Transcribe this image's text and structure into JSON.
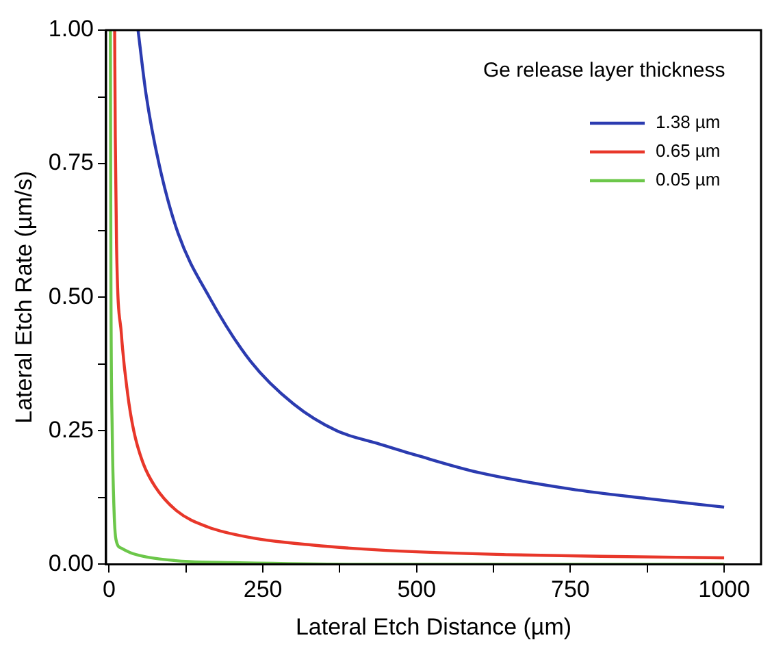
{
  "chart_data": {
    "type": "line",
    "xlabel": "Lateral Etch Distance (µm)",
    "ylabel": "Lateral Etch Rate (µm/s)",
    "legend_title": "Ge release layer thickness",
    "legend": "top right",
    "grid": false,
    "marker": "none",
    "line_style": "solid",
    "xlim": [
      -5,
      1060
    ],
    "ylim": [
      0,
      1
    ],
    "xticks": [
      0,
      {
        "value": 125,
        "label": null
      },
      250,
      {
        "value": 375,
        "label": null
      },
      500,
      {
        "value": 625,
        "label": null
      },
      750,
      {
        "value": 875,
        "label": null
      },
      1000
    ],
    "yticks": [
      {
        "value": 0,
        "label": "0.00"
      },
      {
        "value": 0.125,
        "label": null
      },
      {
        "value": 0.25,
        "label": "0.25"
      },
      {
        "value": 0.375,
        "label": null
      },
      {
        "value": 0.5,
        "label": "0.50"
      },
      {
        "value": 0.625,
        "label": null
      },
      {
        "value": 0.75,
        "label": "0.75"
      },
      {
        "value": 0.875,
        "label": null
      },
      {
        "value": 1,
        "label": "1.00"
      }
    ],
    "series": [
      {
        "name": "1.38 µm",
        "color": "#2b3bb0",
        "x": [
          47,
          60,
          81,
          112,
          163,
          230,
          300,
          370,
          440,
          500,
          600,
          750,
          875,
          1000
        ],
        "values": [
          1,
          0.88,
          0.75,
          0.62,
          0.5,
          0.38,
          0.3,
          0.25,
          0.225,
          0.204,
          0.172,
          0.141,
          0.123,
          0.107
        ]
      },
      {
        "name": "0.65 µm",
        "color": "#e8372a",
        "x": [
          9,
          10,
          12,
          20,
          30,
          40,
          55,
          75,
          110,
          160,
          230,
          330,
          450,
          650,
          800,
          1000
        ],
        "values": [
          1,
          0.8,
          0.6,
          0.43,
          0.32,
          0.25,
          0.19,
          0.145,
          0.1,
          0.07,
          0.05,
          0.036,
          0.026,
          0.018,
          0.015,
          0.012
        ]
      },
      {
        "name": "0.05 µm",
        "color": "#6cc74a",
        "x": [
          2,
          3,
          5,
          8,
          11,
          20,
          34,
          55,
          82,
          130,
          200,
          400,
          700,
          1000
        ],
        "values": [
          1,
          0.5,
          0.25,
          0.1,
          0.047,
          0.03,
          0.022,
          0.015,
          0.01,
          0.005,
          0.003,
          0,
          0,
          0
        ]
      }
    ]
  }
}
